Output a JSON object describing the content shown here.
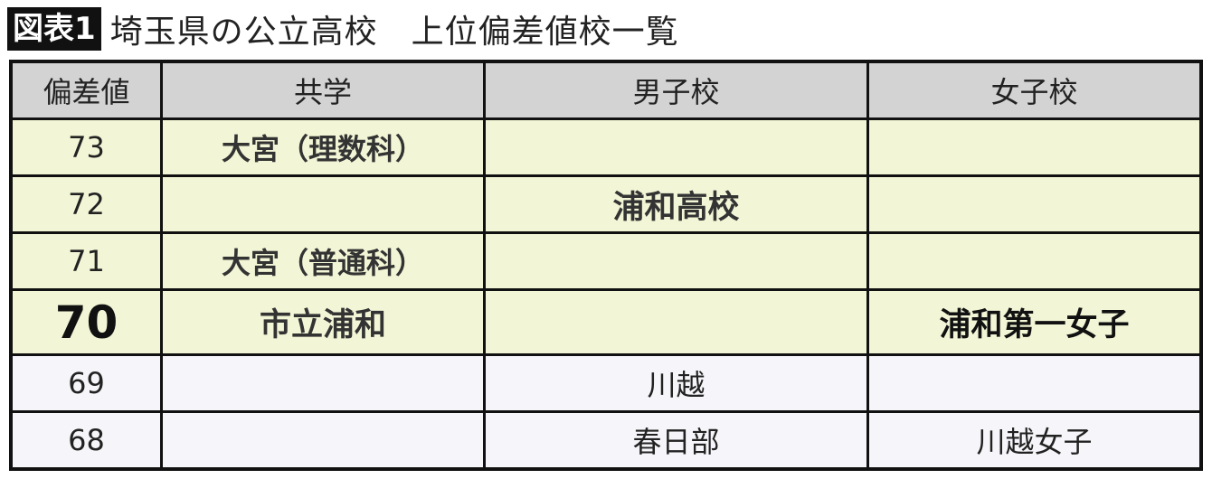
{
  "title": {
    "badge": "図表1",
    "text": "埼玉県の公立高校　上位偏差値校一覧"
  },
  "table": {
    "headers": [
      "偏差値",
      "共学",
      "男子校",
      "女子校"
    ],
    "rows": [
      {
        "score": "73",
        "coed": "大宮（理数科）",
        "boys": "",
        "girls": "",
        "highlight": true
      },
      {
        "score": "72",
        "coed": "",
        "boys": "浦和高校",
        "girls": "",
        "highlight": true
      },
      {
        "score": "71",
        "coed": "大宮（普通科）",
        "boys": "",
        "girls": "",
        "highlight": true
      },
      {
        "score": "70",
        "coed": "市立浦和",
        "boys": "",
        "girls": "浦和第一女子",
        "highlight": true,
        "emphasized": true
      },
      {
        "score": "69",
        "coed": "",
        "boys": "川越",
        "girls": "",
        "highlight": false
      },
      {
        "score": "68",
        "coed": "",
        "boys": "春日部",
        "girls": "川越女子",
        "highlight": false
      }
    ]
  },
  "colors": {
    "header_bg": "#d3d3d3",
    "highlight_bg": "#f3f6d6",
    "normal_bg": "#f6f6fa",
    "border": "#111111"
  }
}
